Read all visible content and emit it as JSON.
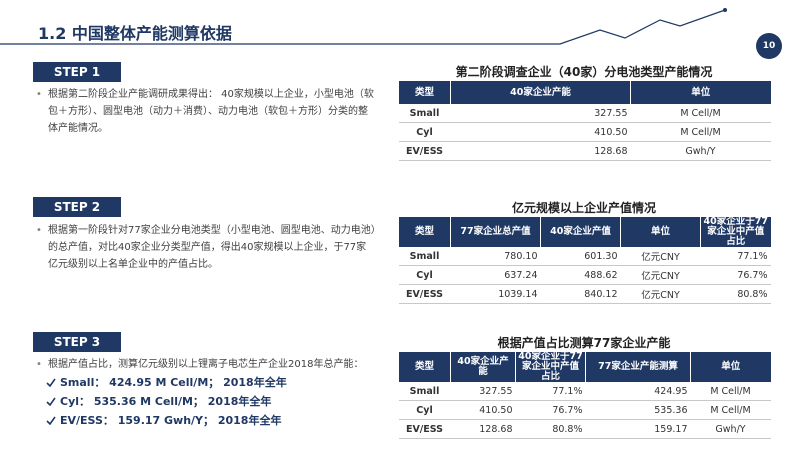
{
  "header": {
    "title": "1.2 中国整体产能测算依据",
    "page": "10"
  },
  "steps": [
    {
      "label": "STEP 1",
      "text": "根据第二阶段企业产能调研成果得出： 40家规模以上企业，小型电池（软包＋方形）、圆型电池（动力＋消费）、动力电池（软包＋方形）分类的整体产能情况。",
      "table": {
        "title": "第二阶段调查企业（40家）分电池类型产能情况",
        "columns": [
          "类型",
          "40家企业产能",
          "单位"
        ],
        "rows": [
          [
            "Small",
            "327.55",
            "M Cell/M"
          ],
          [
            "Cyl",
            "410.50",
            "M Cell/M"
          ],
          [
            "EV/ESS",
            "128.68",
            "Gwh/Y"
          ]
        ]
      }
    },
    {
      "label": "STEP 2",
      "text": "根据第一阶段针对77家企业分电池类型（小型电池、圆型电池、动力电池）的总产值，对比40家企业分类型产值，得出40家规模以上企业，于77家亿元级别以上名单企业中的产值占比。",
      "table": {
        "title": "亿元规模以上企业产值情况",
        "columns": [
          "类型",
          "77家企业总产值",
          "40家企业产值",
          "单位",
          "40家企业于77家企业中产值占比"
        ],
        "rows": [
          [
            "Small",
            "780.10",
            "601.30",
            "亿元CNY",
            "77.1%"
          ],
          [
            "Cyl",
            "637.24",
            "488.62",
            "亿元CNY",
            "76.7%"
          ],
          [
            "EV/ESS",
            "1039.14",
            "840.12",
            "亿元CNY",
            "80.8%"
          ]
        ]
      }
    },
    {
      "label": "STEP 3",
      "text": "根据产值占比，测算亿元级别以上锂离子电芯生产企业2018年总产能：",
      "checks": [
        "Small： 424.95 M Cell/M； 2018年全年",
        "Cyl： 535.36 M Cell/M； 2018年全年",
        "EV/ESS： 159.17 Gwh/Y； 2018年全年"
      ],
      "table": {
        "title": "根据产值占比测算77家企业产能",
        "columns": [
          "类型",
          "40家企业产能",
          "40家企业于77家企业中产值占比",
          "77家企业产能测算",
          "单位"
        ],
        "rows": [
          [
            "Small",
            "327.55",
            "77.1%",
            "424.95",
            "M Cell/M"
          ],
          [
            "Cyl",
            "410.50",
            "76.7%",
            "535.36",
            "M Cell/M"
          ],
          [
            "EV/ESS",
            "128.68",
            "80.8%",
            "159.17",
            "Gwh/Y"
          ]
        ]
      }
    }
  ]
}
